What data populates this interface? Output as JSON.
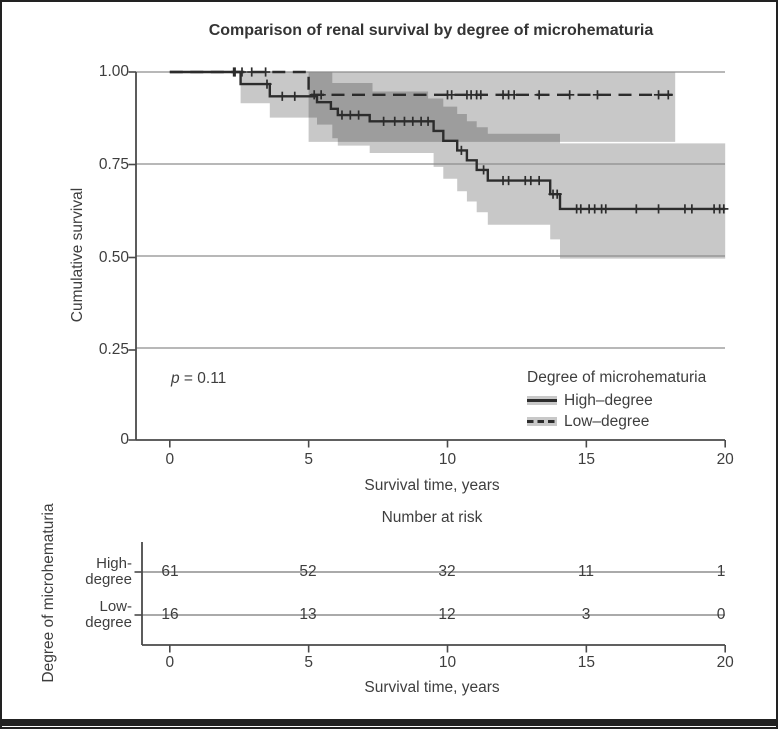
{
  "title": "Comparison of renal survival by degree of microhematuria",
  "axes": {
    "y_label": "Cumulative survival",
    "x_label": "Survival time, years",
    "y_ticks": [
      "1.00",
      "0.75",
      "0.50",
      "0.25",
      "0"
    ],
    "x_ticks": [
      "0",
      "5",
      "10",
      "15",
      "20"
    ]
  },
  "pvalue": {
    "prefix": "p",
    "rest": " = 0.11"
  },
  "legend": {
    "title": "Degree of microhematuria",
    "items": [
      {
        "label": "High–degree",
        "style": "solid"
      },
      {
        "label": "Low–degree",
        "style": "dashed"
      }
    ]
  },
  "risk_table": {
    "title": "Number at risk",
    "y_label": "Degree of microhematuria",
    "x_label": "Survival time, years",
    "x_ticks": [
      "0",
      "5",
      "10",
      "15",
      "20"
    ],
    "rows": [
      {
        "label_line1": "High-",
        "label_line2": "degree",
        "counts": [
          "61",
          "52",
          "32",
          "11",
          "1"
        ]
      },
      {
        "label_line1": "Low-",
        "label_line2": "degree",
        "counts": [
          "16",
          "13",
          "12",
          "3",
          "0"
        ]
      }
    ]
  },
  "colors": {
    "curve": "#2c2c2c",
    "band_fill": "#000000",
    "band_opacity": 0.215,
    "gridline": "#8d8d8d",
    "axis": "#4a4a4a",
    "text": "#3e3e3e"
  },
  "chart_data": {
    "type": "line",
    "subtype": "kaplan-meier-step",
    "title": "Comparison of renal survival by degree of microhematuria",
    "xlabel": "Survival time, years",
    "ylabel": "Cumulative survival",
    "xlim": [
      0,
      20
    ],
    "ylim": [
      0,
      1
    ],
    "x_ticks": [
      0,
      5,
      10,
      15,
      20
    ],
    "y_ticks": [
      1.0,
      0.75,
      0.5,
      0.25,
      0
    ],
    "grid": "horizontal",
    "legend_position": "inside-lower-right",
    "annotation_p": "p = 0.11",
    "series": [
      {
        "name": "High–degree",
        "line": "solid",
        "steps": [
          [
            0,
            1
          ],
          [
            2.55,
            1
          ],
          [
            2.55,
            0.967
          ],
          [
            3.6,
            0.967
          ],
          [
            3.6,
            0.934
          ],
          [
            5.3,
            0.934
          ],
          [
            5.3,
            0.918
          ],
          [
            5.8,
            0.918
          ],
          [
            5.8,
            0.9
          ],
          [
            6.05,
            0.9
          ],
          [
            6.05,
            0.883
          ],
          [
            7.2,
            0.883
          ],
          [
            7.2,
            0.866
          ],
          [
            9.5,
            0.866
          ],
          [
            9.5,
            0.84
          ],
          [
            9.85,
            0.84
          ],
          [
            9.85,
            0.813
          ],
          [
            10.35,
            0.813
          ],
          [
            10.35,
            0.787
          ],
          [
            10.7,
            0.787
          ],
          [
            10.7,
            0.76
          ],
          [
            11.05,
            0.76
          ],
          [
            11.05,
            0.734
          ],
          [
            11.45,
            0.734
          ],
          [
            11.45,
            0.705
          ],
          [
            13.7,
            0.705
          ],
          [
            13.7,
            0.668
          ],
          [
            14.05,
            0.668
          ],
          [
            14.05,
            0.628
          ],
          [
            20,
            0.628
          ]
        ],
        "censors": [
          [
            2.3,
            1
          ],
          [
            3.5,
            0.967
          ],
          [
            4.05,
            0.934
          ],
          [
            4.5,
            0.934
          ],
          [
            6.2,
            0.883
          ],
          [
            6.5,
            0.883
          ],
          [
            6.8,
            0.883
          ],
          [
            7.7,
            0.866
          ],
          [
            8.1,
            0.866
          ],
          [
            8.45,
            0.866
          ],
          [
            8.75,
            0.866
          ],
          [
            9.05,
            0.866
          ],
          [
            9.3,
            0.866
          ],
          [
            10.5,
            0.787
          ],
          [
            11.3,
            0.734
          ],
          [
            12.0,
            0.705
          ],
          [
            12.2,
            0.705
          ],
          [
            12.8,
            0.705
          ],
          [
            13.0,
            0.705
          ],
          [
            13.3,
            0.705
          ],
          [
            13.8,
            0.668
          ],
          [
            13.95,
            0.668
          ],
          [
            14.65,
            0.628
          ],
          [
            14.8,
            0.628
          ],
          [
            15.1,
            0.628
          ],
          [
            15.3,
            0.628
          ],
          [
            15.55,
            0.628
          ],
          [
            15.7,
            0.628
          ],
          [
            16.8,
            0.628
          ],
          [
            17.6,
            0.628
          ],
          [
            18.55,
            0.628
          ],
          [
            18.8,
            0.628
          ],
          [
            19.6,
            0.628
          ],
          [
            19.8,
            0.628
          ],
          [
            19.95,
            0.628
          ]
        ],
        "band": {
          "upper": [
            [
              2.55,
              1
            ],
            [
              5.85,
              1
            ],
            [
              5.85,
              0.97
            ],
            [
              7.3,
              0.97
            ],
            [
              7.3,
              0.947
            ],
            [
              9.3,
              0.947
            ],
            [
              9.3,
              0.928
            ],
            [
              9.85,
              0.928
            ],
            [
              9.85,
              0.906
            ],
            [
              10.35,
              0.906
            ],
            [
              10.35,
              0.886
            ],
            [
              10.7,
              0.886
            ],
            [
              10.7,
              0.866
            ],
            [
              11.05,
              0.866
            ],
            [
              11.05,
              0.85
            ],
            [
              11.45,
              0.85
            ],
            [
              11.45,
              0.832
            ],
            [
              14.05,
              0.832
            ],
            [
              14.05,
              0.806
            ],
            [
              20,
              0.806
            ]
          ],
          "lower": [
            [
              2.55,
              0.915
            ],
            [
              3.6,
              0.915
            ],
            [
              3.6,
              0.876
            ],
            [
              5.3,
              0.876
            ],
            [
              5.3,
              0.857
            ],
            [
              5.85,
              0.857
            ],
            [
              5.85,
              0.82
            ],
            [
              6.05,
              0.82
            ],
            [
              6.05,
              0.8
            ],
            [
              7.2,
              0.8
            ],
            [
              7.2,
              0.78
            ],
            [
              9.5,
              0.78
            ],
            [
              9.5,
              0.742
            ],
            [
              9.85,
              0.742
            ],
            [
              9.85,
              0.71
            ],
            [
              10.35,
              0.71
            ],
            [
              10.35,
              0.676
            ],
            [
              10.7,
              0.676
            ],
            [
              10.7,
              0.648
            ],
            [
              11.05,
              0.648
            ],
            [
              11.05,
              0.619
            ],
            [
              11.45,
              0.619
            ],
            [
              11.45,
              0.585
            ],
            [
              13.7,
              0.585
            ],
            [
              13.7,
              0.545
            ],
            [
              14.05,
              0.545
            ],
            [
              14.05,
              0.493
            ],
            [
              20,
              0.493
            ]
          ]
        },
        "number_at_risk": [
          61,
          52,
          32,
          11,
          1
        ]
      },
      {
        "name": "Low–degree",
        "line": "dashed",
        "steps": [
          [
            0,
            1
          ],
          [
            5,
            1
          ],
          [
            5,
            0.938
          ],
          [
            18.2,
            0.938
          ]
        ],
        "censors": [
          [
            2.35,
            1
          ],
          [
            2.6,
            1
          ],
          [
            2.95,
            1
          ],
          [
            3.45,
            1
          ],
          [
            5.2,
            0.938
          ],
          [
            5.45,
            0.938
          ],
          [
            10.0,
            0.938
          ],
          [
            10.15,
            0.938
          ],
          [
            10.7,
            0.938
          ],
          [
            10.85,
            0.938
          ],
          [
            11.05,
            0.938
          ],
          [
            11.2,
            0.938
          ],
          [
            12.0,
            0.938
          ],
          [
            12.2,
            0.938
          ],
          [
            12.4,
            0.938
          ],
          [
            13.3,
            0.938
          ],
          [
            14.4,
            0.938
          ],
          [
            15.4,
            0.938
          ],
          [
            17.6,
            0.938
          ],
          [
            17.95,
            0.938
          ]
        ],
        "band": {
          "upper": [
            [
              5,
              1
            ],
            [
              18.2,
              1
            ]
          ],
          "lower": [
            [
              5,
              0.81
            ],
            [
              18.2,
              0.81
            ]
          ]
        },
        "number_at_risk": [
          16,
          13,
          12,
          3,
          0
        ]
      }
    ]
  }
}
